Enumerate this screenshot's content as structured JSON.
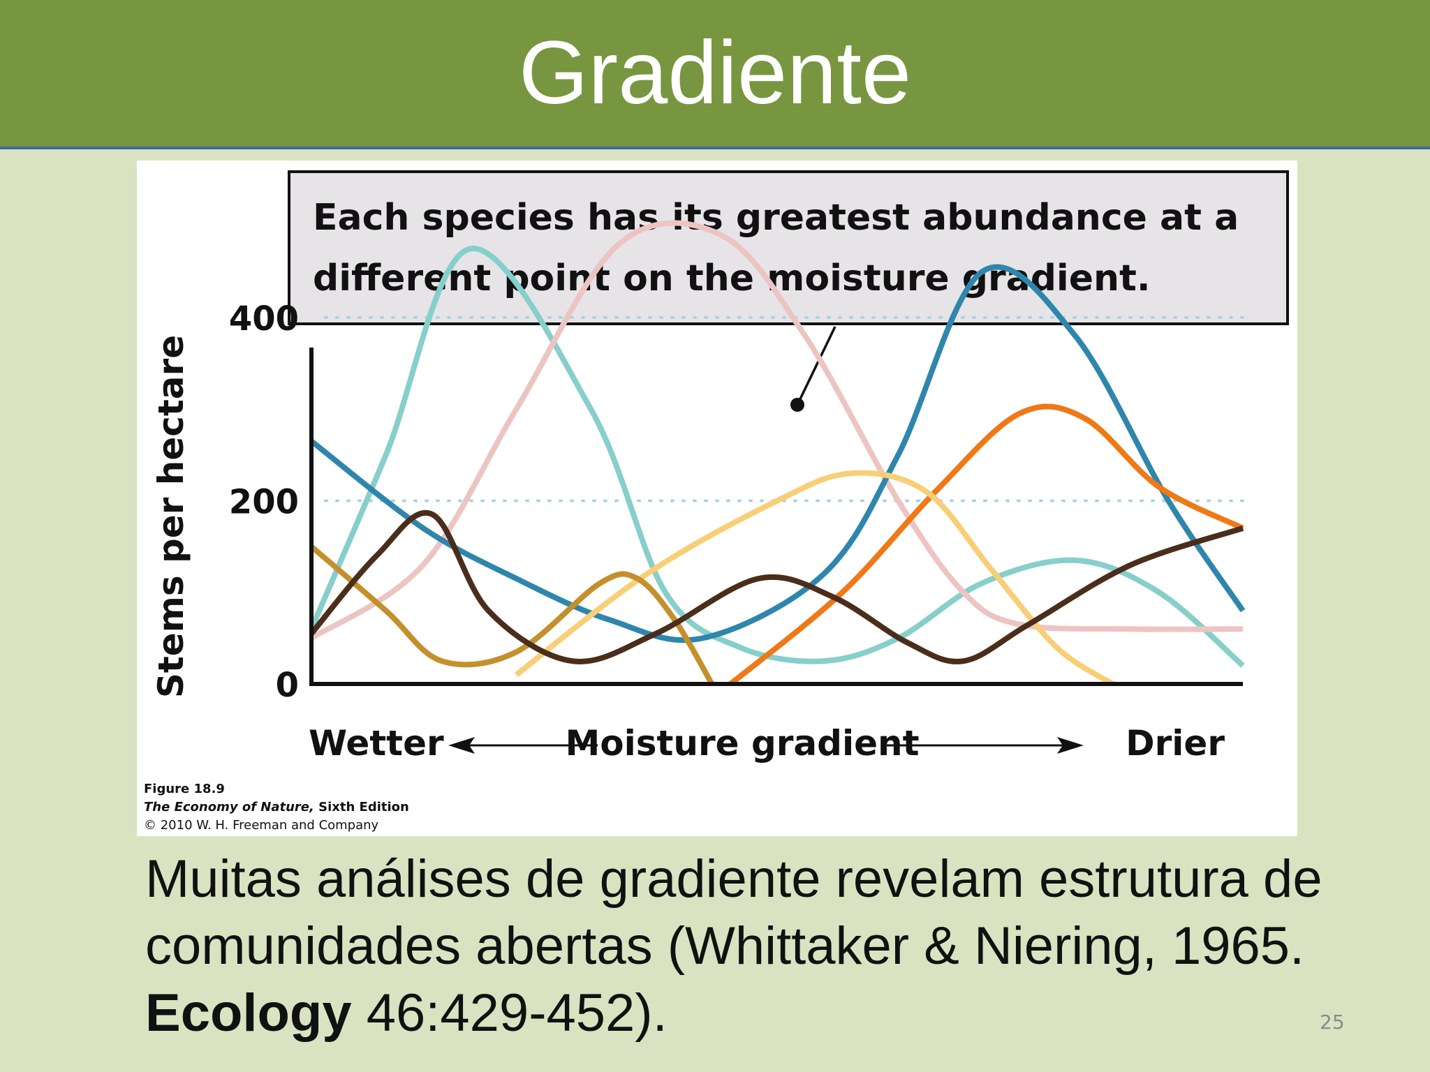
{
  "slide": {
    "title": "Gradiente",
    "caption_part1": "Muitas análises de gradiente revelam estrutura de comunidades abertas (Whittaker & Niering, 1965. ",
    "caption_bold": "Ecology",
    "caption_part2": " 46:429-452).",
    "page_number": "25"
  },
  "figure_credit": {
    "figure_label": "Figure 18.9",
    "book_title": "The Economy of Nature,",
    "edition": " Sixth Edition",
    "copyright": "© 2010 W. H. Freeman and Company"
  },
  "colors": {
    "title_bar": "#77963f",
    "background": "#d9e3c1",
    "cyan": "#86cfcb",
    "pink": "#ecc5c3",
    "blue": "#2f86ad",
    "orange": "#f07815",
    "yellow": "#f8cf77",
    "gold": "#c4902c",
    "brown": "#4a2d1b"
  },
  "chart_data": {
    "type": "line",
    "title": "",
    "callout": [
      "Each species has its greatest abundance at a",
      "different point on the moisture gradient."
    ],
    "ylabel": "Stems per hectare",
    "xlabel": "Moisture gradient",
    "x_left_label": "Wetter",
    "x_right_label": "Drier",
    "ylim": [
      0,
      550
    ],
    "xlim": [
      0,
      100
    ],
    "yticks": [
      0,
      200,
      400
    ],
    "gridlines": [
      200,
      400
    ],
    "grid": "dotted",
    "series": [
      {
        "color_key": "cyan",
        "points": [
          [
            0,
            60
          ],
          [
            8,
            250
          ],
          [
            17,
            475
          ],
          [
            30,
            300
          ],
          [
            38,
            100
          ],
          [
            46,
            40
          ],
          [
            55,
            25
          ],
          [
            63,
            50
          ],
          [
            72,
            110
          ],
          [
            82,
            135
          ],
          [
            91,
            100
          ],
          [
            100,
            20
          ]
        ]
      },
      {
        "color_key": "pink",
        "points": [
          [
            0,
            50
          ],
          [
            12,
            130
          ],
          [
            22,
            300
          ],
          [
            33,
            480
          ],
          [
            44,
            490
          ],
          [
            53,
            380
          ],
          [
            63,
            200
          ],
          [
            70,
            100
          ],
          [
            76,
            65
          ],
          [
            88,
            60
          ],
          [
            100,
            60
          ]
        ]
      },
      {
        "color_key": "blue",
        "points": [
          [
            0,
            265
          ],
          [
            12,
            170
          ],
          [
            22,
            115
          ],
          [
            32,
            70
          ],
          [
            42,
            50
          ],
          [
            55,
            120
          ],
          [
            63,
            250
          ],
          [
            72,
            450
          ],
          [
            82,
            380
          ],
          [
            92,
            200
          ],
          [
            100,
            80
          ]
        ]
      },
      {
        "color_key": "orange",
        "points": [
          [
            45,
            0
          ],
          [
            57,
            100
          ],
          [
            67,
            210
          ],
          [
            76,
            295
          ],
          [
            83,
            290
          ],
          [
            91,
            215
          ],
          [
            100,
            170
          ]
        ]
      },
      {
        "color_key": "yellow",
        "points": [
          [
            22,
            10
          ],
          [
            36,
            120
          ],
          [
            50,
            200
          ],
          [
            58,
            230
          ],
          [
            66,
            210
          ],
          [
            73,
            125
          ],
          [
            80,
            40
          ],
          [
            86,
            0
          ]
        ]
      },
      {
        "color_key": "gold",
        "points": [
          [
            0,
            150
          ],
          [
            8,
            80
          ],
          [
            14,
            25
          ],
          [
            22,
            35
          ],
          [
            31,
            110
          ],
          [
            35,
            115
          ],
          [
            39,
            70
          ],
          [
            43,
            0
          ]
        ]
      },
      {
        "color_key": "brown",
        "points": [
          [
            0,
            55
          ],
          [
            7,
            140
          ],
          [
            13,
            185
          ],
          [
            19,
            80
          ],
          [
            28,
            25
          ],
          [
            37,
            55
          ],
          [
            48,
            115
          ],
          [
            56,
            95
          ],
          [
            64,
            45
          ],
          [
            70,
            25
          ],
          [
            77,
            65
          ],
          [
            88,
            130
          ],
          [
            100,
            170
          ]
        ]
      }
    ]
  }
}
